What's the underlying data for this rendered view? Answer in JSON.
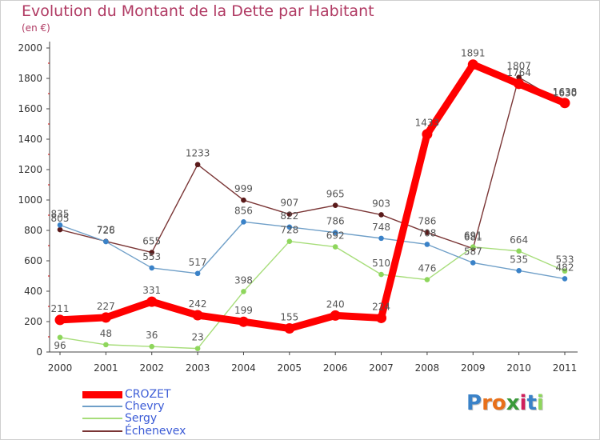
{
  "title": "Evolution du Montant de la Dette par Habitant",
  "unit": "(en €)",
  "logo_text": "Proxiti",
  "chart_data": {
    "type": "line",
    "title": "Evolution du Montant de la Dette par Habitant",
    "subtitle": "(en €)",
    "x": [
      "2000",
      "2001",
      "2002",
      "2003",
      "2004",
      "2005",
      "2006",
      "2007",
      "2008",
      "2009",
      "2010",
      "2011"
    ],
    "ylim": [
      0,
      2000
    ],
    "yticks": [
      0,
      200,
      400,
      600,
      800,
      1000,
      1200,
      1400,
      1600,
      1800,
      2000
    ],
    "grid": false,
    "legend_position": "bottom-left",
    "series": [
      {
        "name": "CROZET",
        "color": "#ff0000",
        "marker_color": "#ff0000",
        "values": [
          211,
          227,
          331,
          242,
          199,
          155,
          240,
          224,
          1433,
          1891,
          1764,
          1638
        ],
        "labels": [
          "211",
          "227",
          "331",
          "242",
          "199",
          "155",
          "240",
          "224",
          "1433",
          "1891",
          "1764",
          "1638"
        ]
      },
      {
        "name": "Chevry",
        "color": "#6f9fc8",
        "marker_color": "#3a82c8",
        "values": [
          835,
          726,
          553,
          517,
          856,
          822,
          786,
          748,
          708,
          587,
          535,
          482
        ],
        "labels": [
          "835",
          "726",
          "553",
          "517",
          "856",
          "822",
          "786",
          "748",
          "708",
          "587",
          "535",
          "482"
        ]
      },
      {
        "name": "Sergy",
        "color": "#a7dd7a",
        "marker_color": "#8ed65c",
        "values": [
          96,
          48,
          36,
          23,
          398,
          728,
          692,
          510,
          476,
          691,
          664,
          533
        ],
        "labels": [
          "96",
          "48",
          "36",
          "23",
          "398",
          "728",
          "692",
          "510",
          "476",
          "691",
          "664",
          "533"
        ]
      },
      {
        "name": "Échenevex",
        "color": "#7a3535",
        "marker_color": "#5a1a1a",
        "values": [
          805,
          728,
          655,
          1233,
          999,
          907,
          965,
          903,
          786,
          681,
          1807,
          1630
        ],
        "labels": [
          "805",
          "728",
          "655",
          "1233",
          "999",
          "907",
          "965",
          "903",
          "786",
          "681",
          "1807",
          "1630"
        ]
      }
    ]
  }
}
